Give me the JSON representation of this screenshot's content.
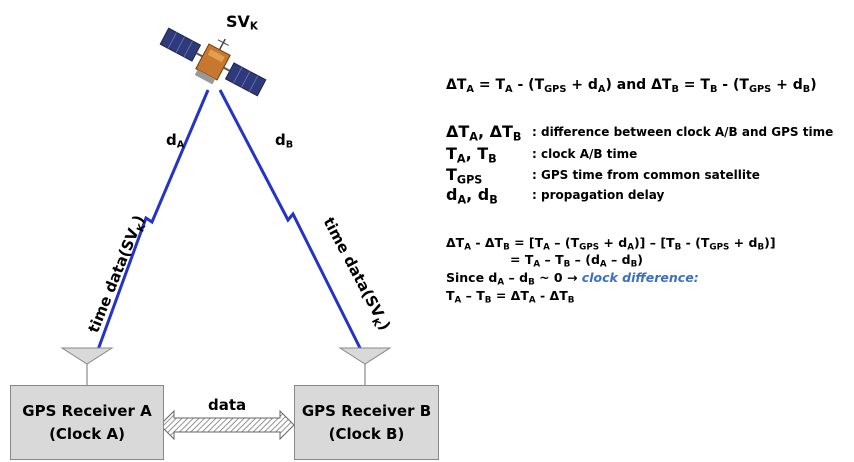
{
  "satellite": {
    "label_main": "SV",
    "label_sub": "K"
  },
  "links": {
    "left_delay": {
      "main": "d",
      "sub": "A"
    },
    "right_delay": {
      "main": "d",
      "sub": "B"
    },
    "left_time_data": {
      "main": "time data(SV",
      "sub": "K",
      "close": ")"
    },
    "right_time_data": {
      "main": "time data(SV",
      "sub": "K",
      "close": ")"
    }
  },
  "receivers": [
    {
      "name": "GPS Receiver A",
      "clock": "(Clock A)"
    },
    {
      "name": "GPS Receiver B",
      "clock": "(Clock B)"
    }
  ],
  "data_link_label": "data",
  "formulas": {
    "main": {
      "p1": "ΔT",
      "s1": "A",
      "p2": " = T",
      "s2": "A",
      "p3": " - (T",
      "s3": "GPS",
      "p4": " + d",
      "s4": "A",
      "p5": ")  and ΔT",
      "s5": "B",
      "p6": " = T",
      "s6": "B",
      "p7": " - (T",
      "s7": "GPS",
      "p8": " + d",
      "s8": "B",
      "p9": ")"
    },
    "definitions": [
      {
        "t1": "ΔT",
        "s1": "A",
        "t2": ", ΔT",
        "s2": "B",
        "desc": ": difference between clock A/B and GPS time"
      },
      {
        "t1": "T",
        "s1": "A",
        "t2": ", T",
        "s2": "B",
        "desc": ": clock A/B time"
      },
      {
        "t1": "T",
        "s1": "GPS",
        "t2": "",
        "s2": "",
        "desc": ": GPS time from common satellite"
      },
      {
        "t1": "d",
        "s1": "A",
        "t2": ", d",
        "s2": "B",
        "desc": ": propagation delay"
      }
    ],
    "derivation": {
      "l1": {
        "a": "ΔT",
        "as": "A",
        "b": " - ΔT",
        "bs": "B",
        "c": " = [T",
        "cs": "A",
        "d": " – (T",
        "ds": "GPS",
        "e": " + d",
        "es": "A",
        "f": ")] – [T",
        "fs": "B",
        "g": " - (T",
        "gs": "GPS",
        "h": " + d",
        "hs": "B",
        "i": ")]"
      },
      "l2": {
        "a": "= T",
        "as": "A",
        "b": " – T",
        "bs": "B",
        "c": " – (d",
        "cs": "A",
        "d": " – d",
        "ds": "B",
        "e": ")"
      },
      "l3": {
        "a": "Since d",
        "as": "A",
        "b": " – d",
        "bs": "B",
        "c": " ~ 0 → ",
        "blue": "clock difference:"
      },
      "l4": {
        "a": "T",
        "as": "A",
        "b": " – T",
        "bs": "B",
        "c": " = ΔT",
        "cs": "A",
        "d": " - ΔT",
        "ds": "B"
      }
    }
  }
}
